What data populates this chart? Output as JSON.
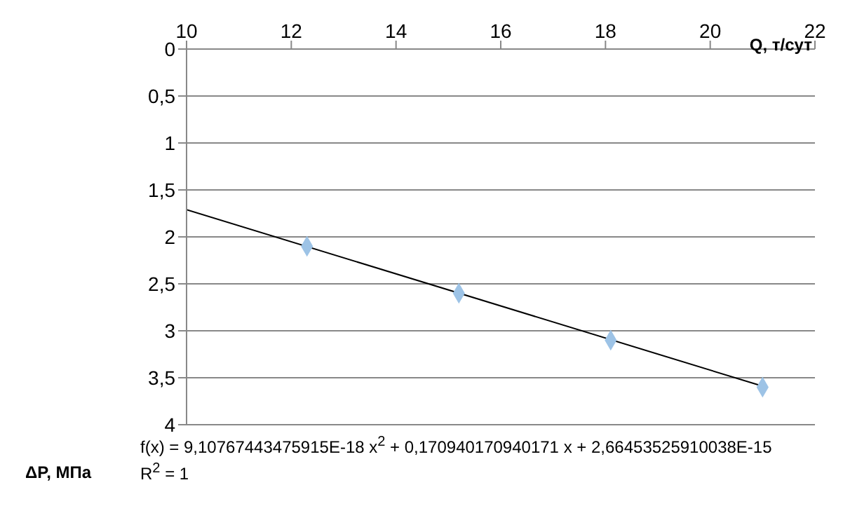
{
  "chart_data": {
    "type": "scatter",
    "xlabel": "Q, т/сут",
    "ylabel": "ΔP, МПа",
    "xlim": [
      10,
      22
    ],
    "xticks": [
      10,
      12,
      14,
      16,
      18,
      20,
      22
    ],
    "ylim": [
      4,
      0
    ],
    "yticks": [
      0,
      {
        "value": 0.5,
        "label": "0,5"
      },
      1,
      {
        "value": 1.5,
        "label": "1,5"
      },
      2,
      {
        "value": 2.5,
        "label": "2,5"
      },
      3,
      {
        "value": 3.5,
        "label": "3,5"
      },
      4
    ],
    "grid": "y",
    "marker": "diamond",
    "series": [
      {
        "color": "#9dc3e6",
        "x": [
          12.3,
          15.2,
          18.1,
          21.0
        ],
        "values": [
          2.1,
          2.6,
          3.1,
          3.6
        ]
      },
      {
        "type": "line",
        "color": "#000000",
        "x": [
          10,
          21
        ],
        "values": [
          1.71,
          3.59
        ],
        "marker": "none"
      }
    ],
    "annotations": [
      "f(x) = 9,10767443475915E-18 x$^{2}$ + 0,170940170940171 x + 2,66453525910038E-15",
      "R$^{2}$ = 1"
    ]
  }
}
